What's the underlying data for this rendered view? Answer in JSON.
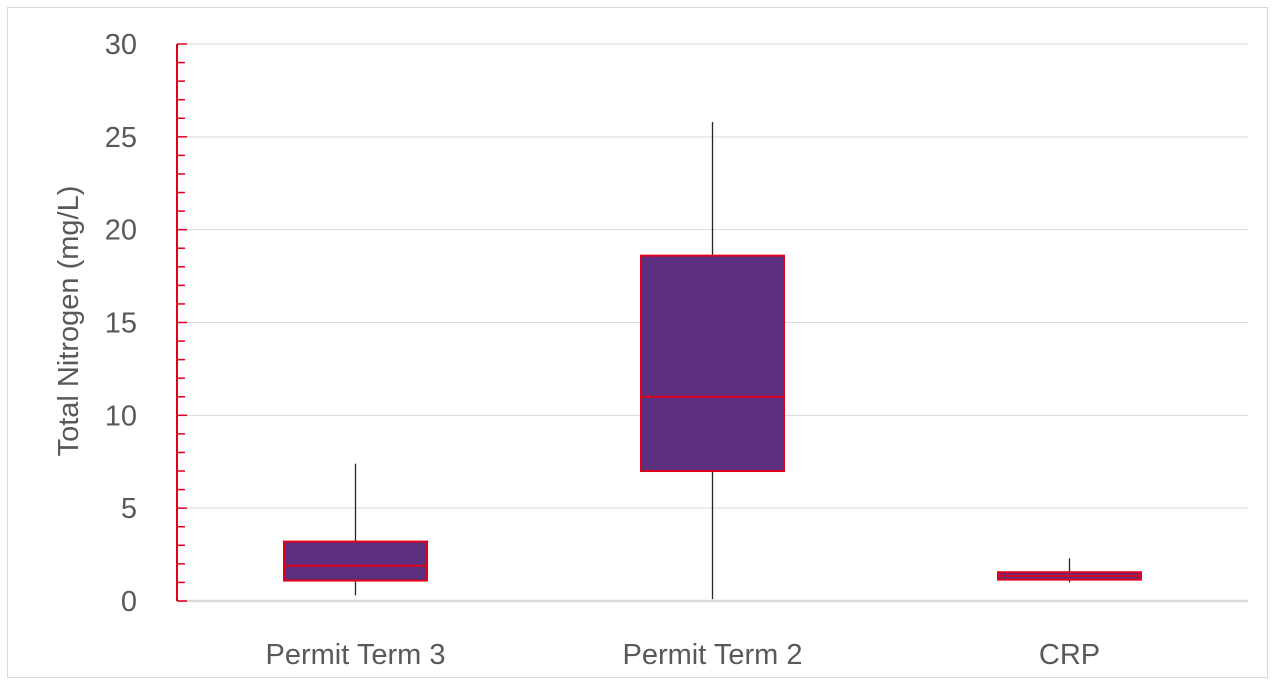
{
  "chart_data": {
    "type": "box",
    "title": "",
    "xlabel": "",
    "ylabel": "Total Nitrogen (mg/L)",
    "ylim": [
      0,
      30
    ],
    "yticks": [
      0,
      5,
      10,
      15,
      20,
      25,
      30
    ],
    "grid": true,
    "legend": "none",
    "categories": [
      "Permit Term 3",
      "Permit Term 2",
      "CRP"
    ],
    "boxes": [
      {
        "category": "Permit Term 3",
        "min": 0.3,
        "q1": 1.1,
        "median": 1.9,
        "q3": 3.2,
        "max": 7.4
      },
      {
        "category": "Permit Term 2",
        "min": 0.1,
        "q1": 7.0,
        "median": 11.0,
        "q3": 18.6,
        "max": 25.8
      },
      {
        "category": "CRP",
        "min": 1.0,
        "q1": 1.15,
        "median": 1.35,
        "q3": 1.55,
        "max": 2.3
      }
    ],
    "colors": {
      "box_fill": "#5b2f7e",
      "box_border": "#e0001b",
      "median_line": "#e0001b",
      "whisker": "#262626",
      "axis": "#e0001b",
      "gridline": "#d9d9d9",
      "baseline": "#d9d9d9",
      "text": "#595959"
    }
  }
}
